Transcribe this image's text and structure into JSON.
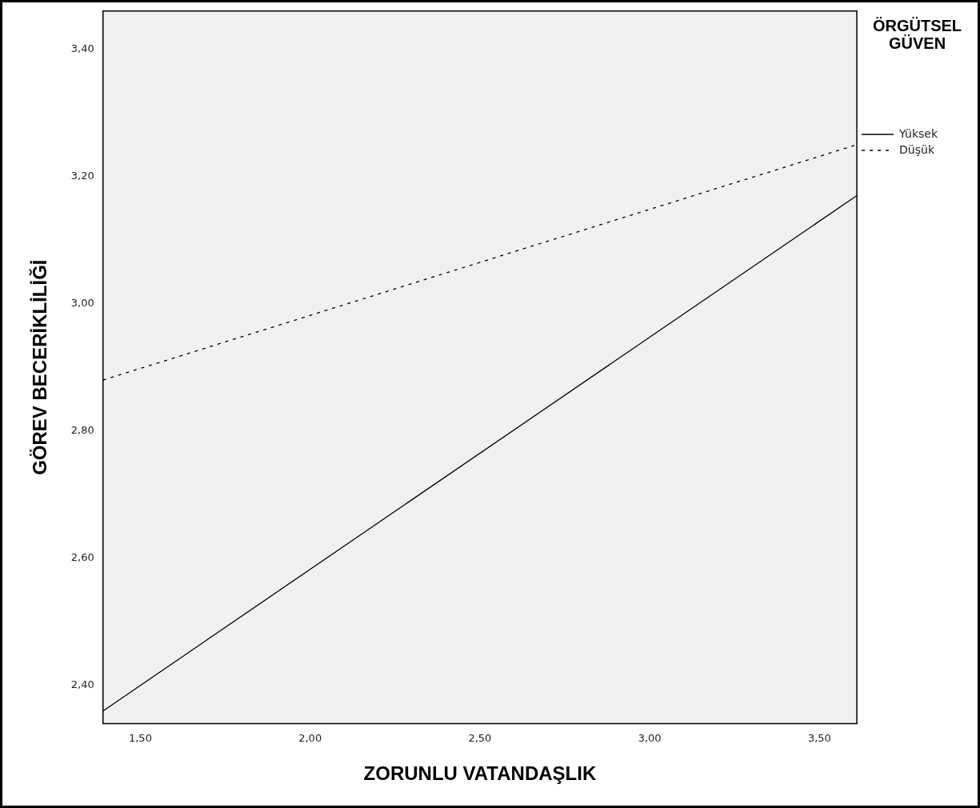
{
  "chart_data": {
    "type": "line",
    "xlabel": "ZORUNLU VATANDAŞLIK",
    "ylabel": "GÖREV BECERİKLİLİĞİ",
    "legend_title": "ÖRGÜTSEL GÜVEN",
    "xlim": [
      1.39,
      3.61
    ],
    "xticks": [
      {
        "value": 1.5,
        "label": "1,50"
      },
      {
        "value": 2,
        "label": "2,00"
      },
      {
        "value": 2.5,
        "label": "2,50"
      },
      {
        "value": 3,
        "label": "3,00"
      },
      {
        "value": 3.5,
        "label": "3,50"
      }
    ],
    "ylim": [
      2.34,
      3.46
    ],
    "yticks": [
      {
        "value": 2.4,
        "label": "2,40"
      },
      {
        "value": 2.6,
        "label": "2,60"
      },
      {
        "value": 2.8,
        "label": "2,80"
      },
      {
        "value": 3,
        "label": "3,00"
      },
      {
        "value": 3.2,
        "label": "3,20"
      },
      {
        "value": 3.4,
        "label": "3,40"
      }
    ],
    "x": [
      1.39,
      3.61
    ],
    "series": [
      {
        "name": "Yüksek",
        "color": "#000000",
        "values": [
          2.36,
          3.17
        ],
        "line_style": "solid"
      },
      {
        "name": "Düşük",
        "color": "#000000",
        "values": [
          2.88,
          3.25
        ],
        "line_style": "dashed"
      }
    ],
    "grid": false,
    "legend": "top right",
    "marker": "none"
  }
}
